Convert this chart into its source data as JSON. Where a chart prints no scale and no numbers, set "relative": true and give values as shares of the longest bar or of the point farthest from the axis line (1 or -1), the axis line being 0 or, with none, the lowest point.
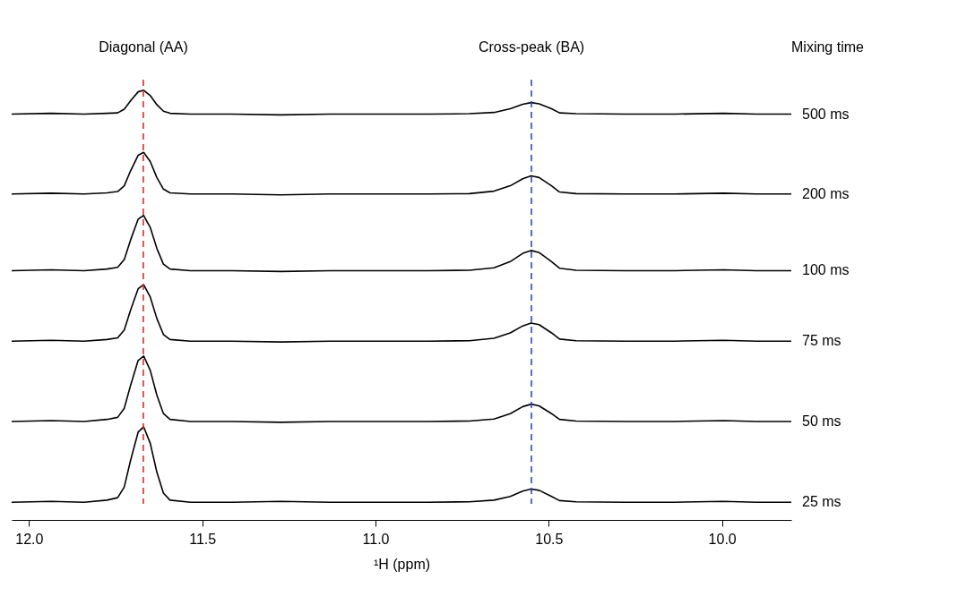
{
  "chart_data": {
    "type": "line",
    "relative": true,
    "xlabel": "¹H (ppm)",
    "xlim": [
      12.05,
      9.8
    ],
    "xticks": [
      {
        "value": 12.0,
        "label": "12.0"
      },
      {
        "value": 11.5,
        "label": "11.5"
      },
      {
        "value": 11.0,
        "label": "11.0"
      },
      {
        "value": 10.5,
        "label": "10.5"
      },
      {
        "value": 10.0,
        "label": "10.0"
      }
    ],
    "grid": false,
    "legend": false,
    "marker": "none",
    "line_style": "solid",
    "annotations": [
      "Mixing time"
    ],
    "ref_lines": [
      {
        "axis": "x",
        "value": 11.67,
        "label": "Diagonal (AA)",
        "color": "#e8262a",
        "line_style": "dashed"
      },
      {
        "axis": "x",
        "value": 10.55,
        "label": "Cross-peak (BA)",
        "color": "#3040e0",
        "line_style": "dashed"
      }
    ],
    "x": [
      12.05,
      11.936,
      11.841,
      11.775,
      11.744,
      11.725,
      11.707,
      11.685,
      11.669,
      11.65,
      11.631,
      11.612,
      11.593,
      11.534,
      11.415,
      11.273,
      11.131,
      10.989,
      10.847,
      10.729,
      10.658,
      10.611,
      10.575,
      10.551,
      10.528,
      10.492,
      10.469,
      10.421,
      10.279,
      10.137,
      9.995,
      9.901,
      9.8
    ],
    "series": [
      {
        "name": "500 ms",
        "color": "#000000",
        "values": [
          0.942,
          0.944,
          0.942,
          0.944,
          0.945,
          0.954,
          0.974,
          0.996,
          1.0,
          0.987,
          0.965,
          0.949,
          0.944,
          0.942,
          0.942,
          0.94,
          0.942,
          0.942,
          0.942,
          0.943,
          0.946,
          0.955,
          0.966,
          0.97,
          0.967,
          0.955,
          0.945,
          0.943,
          0.942,
          0.942,
          0.944,
          0.942,
          0.942
        ]
      },
      {
        "name": "200 ms",
        "color": "#000000",
        "values": [
          0.748,
          0.75,
          0.748,
          0.751,
          0.754,
          0.768,
          0.804,
          0.842,
          0.849,
          0.827,
          0.788,
          0.76,
          0.751,
          0.748,
          0.748,
          0.746,
          0.748,
          0.748,
          0.748,
          0.749,
          0.755,
          0.768,
          0.785,
          0.792,
          0.788,
          0.768,
          0.753,
          0.749,
          0.748,
          0.748,
          0.75,
          0.748,
          0.748
        ]
      },
      {
        "name": "100 ms",
        "color": "#000000",
        "values": [
          0.562,
          0.564,
          0.562,
          0.566,
          0.57,
          0.589,
          0.636,
          0.687,
          0.696,
          0.667,
          0.616,
          0.578,
          0.566,
          0.562,
          0.562,
          0.56,
          0.562,
          0.562,
          0.562,
          0.563,
          0.569,
          0.584,
          0.604,
          0.611,
          0.606,
          0.584,
          0.568,
          0.563,
          0.562,
          0.562,
          0.564,
          0.562,
          0.562
        ]
      },
      {
        "name": "75 ms",
        "color": "#000000",
        "values": [
          0.391,
          0.393,
          0.391,
          0.395,
          0.399,
          0.418,
          0.466,
          0.518,
          0.528,
          0.498,
          0.446,
          0.407,
          0.395,
          0.391,
          0.391,
          0.389,
          0.391,
          0.391,
          0.391,
          0.392,
          0.398,
          0.411,
          0.428,
          0.435,
          0.431,
          0.411,
          0.396,
          0.392,
          0.391,
          0.391,
          0.393,
          0.391,
          0.391
        ]
      },
      {
        "name": "50 ms",
        "color": "#000000",
        "values": [
          0.196,
          0.198,
          0.196,
          0.201,
          0.206,
          0.228,
          0.283,
          0.344,
          0.355,
          0.32,
          0.26,
          0.215,
          0.201,
          0.196,
          0.196,
          0.194,
          0.196,
          0.196,
          0.196,
          0.197,
          0.202,
          0.215,
          0.232,
          0.238,
          0.234,
          0.215,
          0.201,
          0.197,
          0.196,
          0.196,
          0.198,
          0.196,
          0.196
        ]
      },
      {
        "name": "25 ms",
        "color": "#000000",
        "values": [
          0.0,
          0.002,
          0.0,
          0.005,
          0.011,
          0.037,
          0.101,
          0.17,
          0.183,
          0.143,
          0.073,
          0.022,
          0.005,
          0.0,
          0.0,
          0.002,
          0.0,
          0.0,
          0.0,
          0.001,
          0.005,
          0.014,
          0.027,
          0.032,
          0.029,
          0.014,
          0.004,
          0.001,
          0.0,
          0.0,
          0.002,
          0.0,
          0.0
        ]
      }
    ]
  }
}
